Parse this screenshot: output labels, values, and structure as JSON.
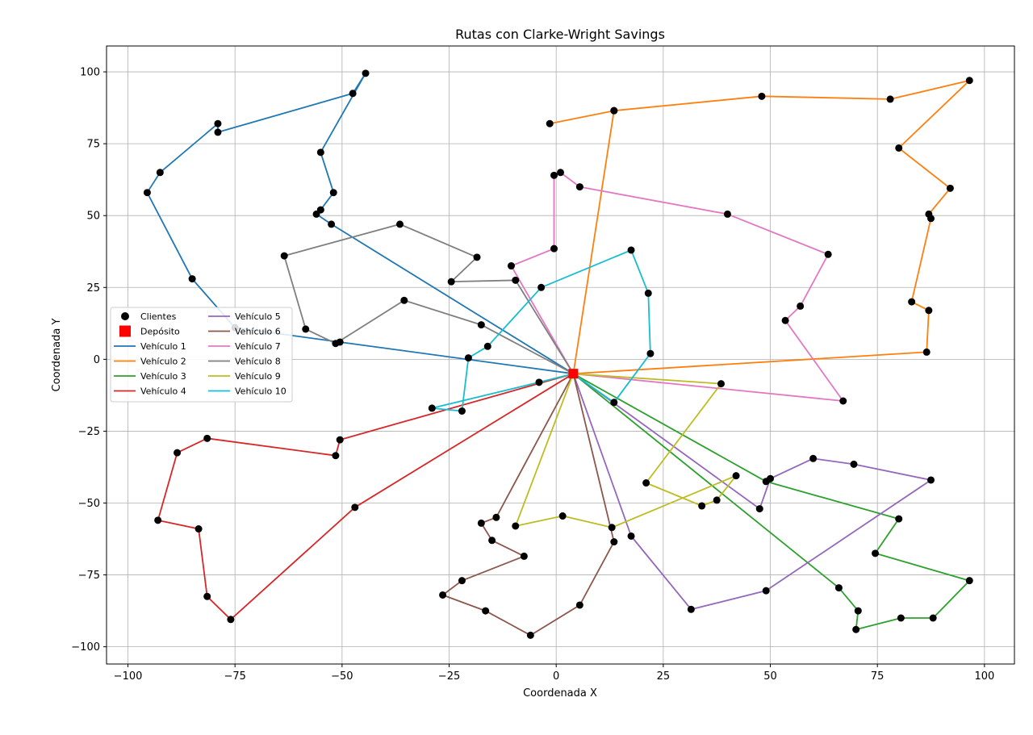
{
  "chart_data": {
    "type": "line",
    "title": "Rutas con Clarke-Wright Savings",
    "xlabel": "Coordenada X",
    "ylabel": "Coordenada Y",
    "xlim": [
      -105,
      107
    ],
    "ylim": [
      -106,
      109
    ],
    "xticks": [
      -100,
      -75,
      -50,
      -25,
      0,
      25,
      50,
      75,
      100
    ],
    "yticks": [
      -100,
      -75,
      -50,
      -25,
      0,
      25,
      50,
      75,
      100
    ],
    "xtick_labels": [
      "−100",
      "−75",
      "−50",
      "−25",
      "0",
      "25",
      "50",
      "75",
      "100"
    ],
    "ytick_labels": [
      "−100",
      "−75",
      "−50",
      "−25",
      "0",
      "25",
      "50",
      "75",
      "100"
    ],
    "grid": true,
    "legend_position": "center-left",
    "legend": {
      "clients_label": "Clientes",
      "depot_label": "Depósito"
    },
    "depot": {
      "x": 4,
      "y": -5,
      "color": "#ff0000"
    },
    "client_color": "#000000",
    "series": [
      {
        "name": "Vehículo 1",
        "color": "#1f77b4",
        "points": [
          [
            4,
            -5
          ],
          [
            -50.5,
            6
          ],
          [
            -75,
            11
          ],
          [
            -85,
            28
          ],
          [
            -95.5,
            58
          ],
          [
            -92.5,
            65
          ],
          [
            -79,
            82
          ],
          [
            -79,
            79
          ],
          [
            -47.5,
            92.5
          ],
          [
            -44.5,
            99.5
          ],
          [
            -55,
            72
          ],
          [
            -52,
            58
          ],
          [
            -55,
            52
          ],
          [
            -56,
            50.5
          ],
          [
            -52.5,
            47
          ],
          [
            4,
            -5
          ]
        ]
      },
      {
        "name": "Vehículo 2",
        "color": "#ff7f0e",
        "points": [
          [
            4,
            -5
          ],
          [
            86.5,
            2.5
          ],
          [
            87,
            17
          ],
          [
            83,
            20
          ],
          [
            87.5,
            49
          ],
          [
            87,
            50.5
          ],
          [
            92,
            59.5
          ],
          [
            80,
            73.5
          ],
          [
            96.5,
            97
          ],
          [
            78,
            90.5
          ],
          [
            48,
            91.5
          ],
          [
            13.5,
            86.5
          ],
          [
            -1.5,
            82
          ],
          [
            13.5,
            86.5
          ],
          [
            4,
            -5
          ]
        ]
      },
      {
        "name": "Vehículo 3",
        "color": "#2ca02c",
        "points": [
          [
            4,
            -5
          ],
          [
            49,
            -42.5
          ],
          [
            80,
            -55.5
          ],
          [
            74.5,
            -67.5
          ],
          [
            96.5,
            -77
          ],
          [
            88,
            -90
          ],
          [
            80.5,
            -90
          ],
          [
            70,
            -94
          ],
          [
            70.5,
            -87.5
          ],
          [
            66,
            -79.5
          ],
          [
            4,
            -5
          ]
        ]
      },
      {
        "name": "Vehículo 4",
        "color": "#d62728",
        "points": [
          [
            4,
            -5
          ],
          [
            -50.5,
            -28
          ],
          [
            -51.5,
            -33.5
          ],
          [
            -81.5,
            -27.5
          ],
          [
            -88.5,
            -32.5
          ],
          [
            -93,
            -56
          ],
          [
            -83.5,
            -59
          ],
          [
            -81.5,
            -82.5
          ],
          [
            -76,
            -90.5
          ],
          [
            -47,
            -51.5
          ],
          [
            4,
            -5
          ]
        ]
      },
      {
        "name": "Vehículo 5",
        "color": "#9467bd",
        "points": [
          [
            4,
            -5
          ],
          [
            47.5,
            -52
          ],
          [
            50,
            -41.5
          ],
          [
            60,
            -34.5
          ],
          [
            69.5,
            -36.5
          ],
          [
            87.5,
            -42
          ],
          [
            49,
            -80.5
          ],
          [
            31.5,
            -87
          ],
          [
            17.5,
            -61.5
          ],
          [
            4,
            -5
          ]
        ]
      },
      {
        "name": "Vehículo 6",
        "color": "#8c564b",
        "points": [
          [
            4,
            -5
          ],
          [
            -14,
            -55
          ],
          [
            -17.5,
            -57
          ],
          [
            -15,
            -63
          ],
          [
            -7.5,
            -68.5
          ],
          [
            -22,
            -77
          ],
          [
            -26.5,
            -82
          ],
          [
            -16.5,
            -87.5
          ],
          [
            -6,
            -96
          ],
          [
            5.5,
            -85.5
          ],
          [
            13.5,
            -63.5
          ],
          [
            4,
            -5
          ]
        ]
      },
      {
        "name": "Vehículo 7",
        "color": "#e377c2",
        "points": [
          [
            4,
            -5
          ],
          [
            -10.5,
            32.5
          ],
          [
            -0.5,
            38.5
          ],
          [
            -0.5,
            64
          ],
          [
            1,
            65
          ],
          [
            5.5,
            60
          ],
          [
            40,
            50.5
          ],
          [
            63.5,
            36.5
          ],
          [
            57,
            18.5
          ],
          [
            53.5,
            13.5
          ],
          [
            67,
            -14.5
          ],
          [
            4,
            -5
          ]
        ]
      },
      {
        "name": "Vehículo 8",
        "color": "#7f7f7f",
        "points": [
          [
            4,
            -5
          ],
          [
            -9.5,
            27.5
          ],
          [
            -24.5,
            27
          ],
          [
            -18.5,
            35.5
          ],
          [
            -36.5,
            47
          ],
          [
            -63.5,
            36
          ],
          [
            -58.5,
            10.5
          ],
          [
            -51.5,
            5.5
          ],
          [
            -35.5,
            20.5
          ],
          [
            -17.5,
            12
          ],
          [
            4,
            -5
          ]
        ]
      },
      {
        "name": "Vehículo 9",
        "color": "#bcbd22",
        "points": [
          [
            4,
            -5
          ],
          [
            38.5,
            -8.5
          ],
          [
            21,
            -43
          ],
          [
            34,
            -51
          ],
          [
            37.5,
            -49
          ],
          [
            42,
            -40.5
          ],
          [
            13,
            -58.5
          ],
          [
            1.5,
            -54.5
          ],
          [
            -9.5,
            -58
          ],
          [
            4,
            -5
          ]
        ]
      },
      {
        "name": "Vehículo 10",
        "color": "#17becf",
        "points": [
          [
            4,
            -5
          ],
          [
            -4,
            -8
          ],
          [
            -29,
            -17
          ],
          [
            -22,
            -18
          ],
          [
            -20.5,
            0.5
          ],
          [
            -16,
            4.5
          ],
          [
            -3.5,
            25
          ],
          [
            17.5,
            38
          ],
          [
            21.5,
            23
          ],
          [
            22,
            2
          ],
          [
            13.5,
            -15
          ],
          [
            4,
            -5
          ]
        ]
      }
    ]
  }
}
